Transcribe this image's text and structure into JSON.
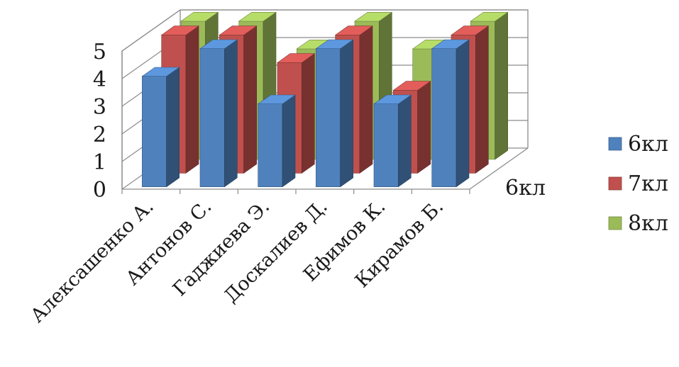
{
  "chart_data": {
    "type": "bar",
    "style": "3d-clustered-column",
    "categories": [
      "Алексашенко А.",
      "Антонов С.",
      "Гаджиева Э.",
      "Доскалиев Д.",
      "Ефимов К.",
      "Кирамов Б."
    ],
    "series": [
      {
        "name": "6кл",
        "values": [
          4,
          5,
          3,
          5,
          3,
          5
        ],
        "color": "#4f81bd"
      },
      {
        "name": "7кл",
        "values": [
          5,
          5,
          4,
          5,
          3,
          5
        ],
        "color": "#c0504d"
      },
      {
        "name": "8кл",
        "values": [
          5,
          5,
          4,
          5,
          4,
          5
        ],
        "color": "#9bbb59"
      }
    ],
    "yticks": [
      "0",
      "1",
      "2",
      "3",
      "4",
      "5"
    ],
    "ylim": [
      0,
      5
    ],
    "depth_axis_label": "6кл",
    "grid": true,
    "legend_position": "right"
  }
}
